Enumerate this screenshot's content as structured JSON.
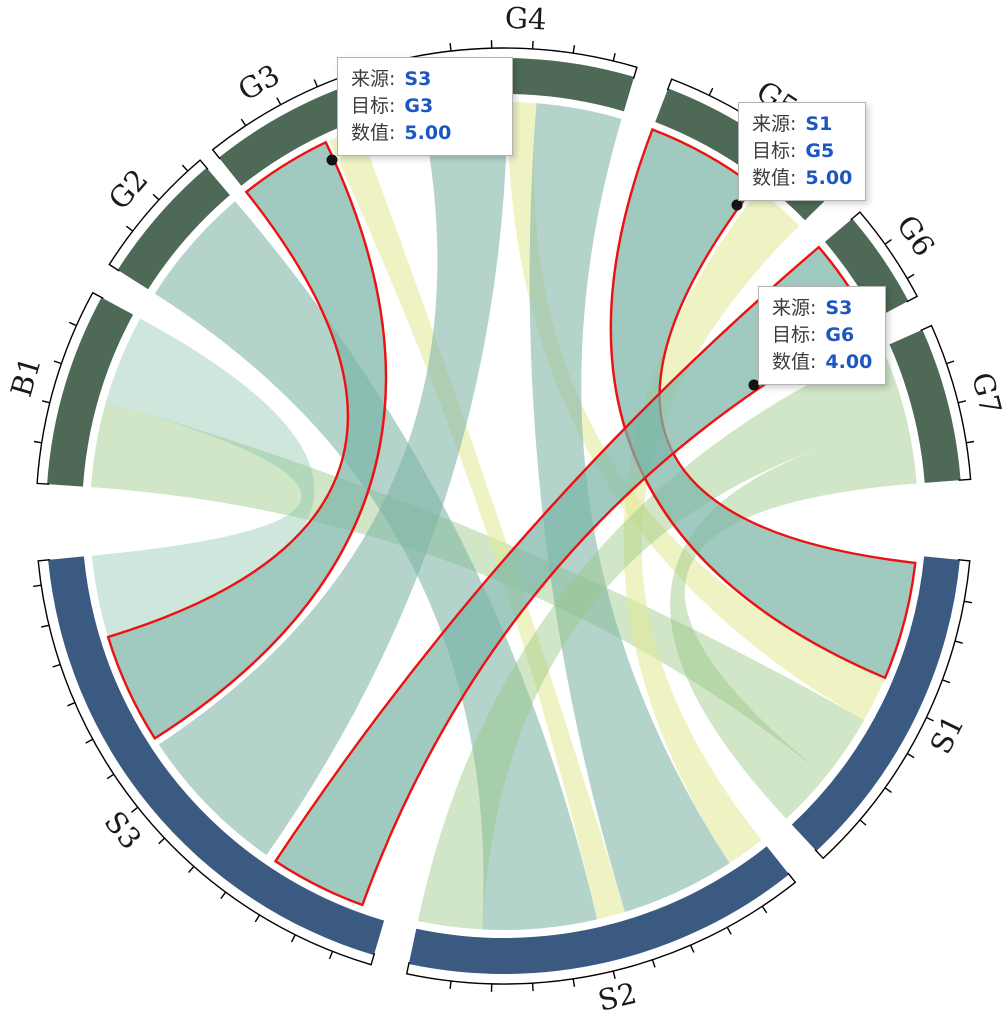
{
  "tooltips": [
    {
      "rows": [
        {
          "label": "来源:",
          "value": "S3"
        },
        {
          "label": "目标:",
          "value": "G3"
        },
        {
          "label": "数值:",
          "value": "5.00"
        }
      ]
    },
    {
      "rows": [
        {
          "label": "来源:",
          "value": "S1"
        },
        {
          "label": "目标:",
          "value": "G5"
        },
        {
          "label": "数值:",
          "value": "5.00"
        }
      ]
    },
    {
      "rows": [
        {
          "label": "来源:",
          "value": "S3"
        },
        {
          "label": "目标:",
          "value": "G6"
        },
        {
          "label": "数值:",
          "value": "4.00"
        }
      ]
    }
  ],
  "chart_data": {
    "type": "chord",
    "title": "",
    "legend_position": "none",
    "segments": [
      {
        "name": "G4",
        "start": -11.5,
        "end": 16.5,
        "group": "G",
        "color": "#4e6a57"
      },
      {
        "name": "G5",
        "start": 21,
        "end": 45.5,
        "group": "G",
        "color": "#4e6a57"
      },
      {
        "name": "G6",
        "start": 49.5,
        "end": 62,
        "group": "G",
        "color": "#4e6a57"
      },
      {
        "name": "G7",
        "start": 66,
        "end": 85.5,
        "group": "G",
        "color": "#4e6a57"
      },
      {
        "name": "S1",
        "start": 95.5,
        "end": 137,
        "group": "S",
        "color": "#3b5a81"
      },
      {
        "name": "S2",
        "start": 141.5,
        "end": 192,
        "group": "S",
        "color": "#3b5a81"
      },
      {
        "name": "S3",
        "start": 196.5,
        "end": 264.5,
        "group": "S",
        "color": "#3b5a81"
      },
      {
        "name": "B1",
        "start": 274,
        "end": 298.5,
        "group": "G",
        "color": "#4e6a57"
      },
      {
        "name": "G2",
        "start": 302.5,
        "end": 319.5,
        "group": "G",
        "color": "#4e6a57"
      },
      {
        "name": "G3",
        "start": 321.5,
        "end": 339.5,
        "group": "G",
        "color": "#4e6a57"
      }
    ],
    "labeled_flows": [
      {
        "source": "S3",
        "target": "G3",
        "value": 5.0
      },
      {
        "source": "S1",
        "target": "G5",
        "value": 5.0
      },
      {
        "source": "S3",
        "target": "G6",
        "value": 4.0
      }
    ],
    "ribbons": [
      {
        "source": "S1",
        "target": "G4",
        "s": [
          113,
          119.5
        ],
        "t": [
          0.5,
          4.5
        ],
        "color": "yellow",
        "highlighted": false
      },
      {
        "source": "S1",
        "target": "B1",
        "s": [
          119.5,
          129
        ],
        "t": [
          274,
          286
        ],
        "color": "green",
        "highlighted": false
      },
      {
        "source": "S1",
        "target": "G7",
        "s": [
          129,
          137
        ],
        "t": [
          77,
          85.5
        ],
        "color": "green",
        "highlighted": false
      },
      {
        "source": "S2",
        "target": "G5",
        "s": [
          141.5,
          147
        ],
        "t": [
          38,
          45.5
        ],
        "color": "yellow",
        "highlighted": false
      },
      {
        "source": "S2",
        "target": "G4",
        "s": [
          147,
          163
        ],
        "t": [
          4.5,
          16.5
        ],
        "color": "teal",
        "highlighted": false
      },
      {
        "source": "S2",
        "target": "G3",
        "s": [
          163,
          167
        ],
        "t": [
          335,
          339.5
        ],
        "color": "yellow",
        "highlighted": false
      },
      {
        "source": "S2",
        "target": "G2",
        "s": [
          167,
          183
        ],
        "t": [
          302.5,
          319.5
        ],
        "color": "teal",
        "highlighted": false
      },
      {
        "source": "S2",
        "target": "G7",
        "s": [
          183,
          192
        ],
        "t": [
          66,
          77
        ],
        "color": "green",
        "highlighted": false
      },
      {
        "source": "S3",
        "target": "G4",
        "s": [
          215,
          236.5
        ],
        "t": [
          348.5,
          360.5
        ],
        "color": "teal",
        "highlighted": false
      },
      {
        "source": "S3",
        "target": "B1",
        "s": [
          253,
          264.5
        ],
        "t": [
          286,
          298.5
        ],
        "color": "green2",
        "highlighted": false
      },
      {
        "source": "S1",
        "target": "G5",
        "s": [
          96.5,
          113
        ],
        "t": [
          21,
          37.2
        ],
        "color": "tealHi",
        "highlighted": true,
        "value": 5.0
      },
      {
        "source": "S3",
        "target": "G6",
        "s": [
          200,
          213.5
        ],
        "t": [
          49.5,
          62
        ],
        "color": "tealHi",
        "highlighted": true,
        "value": 4.0
      },
      {
        "source": "S3",
        "target": "G3",
        "s": [
          237.5,
          253
        ],
        "t": [
          321.5,
          334.5
        ],
        "color": "tealHi",
        "highlighted": true,
        "value": 5.0
      }
    ],
    "colors": {
      "teal": "rgba(125,180,166,0.58)",
      "tealHi": "rgba(124,182,168,0.72)",
      "green": "rgba(150,200,130,0.45)",
      "green2": "rgba(138,195,172,0.42)",
      "yellow": "rgba(225,234,148,0.55)",
      "highlight_stroke": "#ee1111",
      "band_green": "#4e6a57",
      "band_blue": "#3b5a81",
      "axis": "#000000",
      "tooltip_value": "#1c57c1"
    },
    "geometry_note": "angles in degrees clockwise from 12 o'clock"
  }
}
